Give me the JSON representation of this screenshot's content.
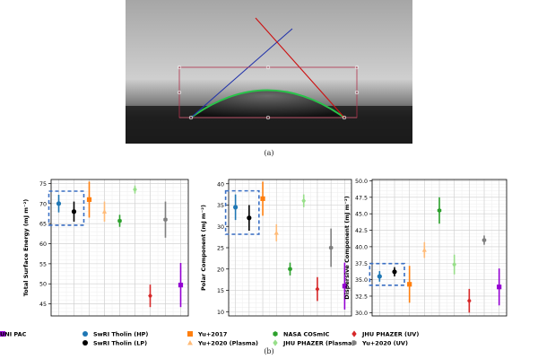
{
  "captions": {
    "a": "(a)",
    "b": "(b)"
  },
  "colors": {
    "SwRI Tholin (HP)": "#1f77b4",
    "SwRI Tholin (LP)": "#000000",
    "Yu+2017": "#ff7f0e",
    "Yu+2020 (Plasma)": "#ffbb78",
    "NASA COSmIC": "#2ca02c",
    "JHU PHAZER (Plasma)": "#98df8a",
    "JHU PHAZER (UV)": "#d62728",
    "Yu+2020 (UV)": "#7f7f7f",
    "UNI PAC": "#9400d3"
  },
  "legend": [
    {
      "label": "SwRI Tholin (HP)",
      "marker": "circle"
    },
    {
      "label": "SwRI Tholin (LP)",
      "marker": "circle"
    },
    {
      "label": "Yu+2017",
      "marker": "square"
    },
    {
      "label": "Yu+2020 (Plasma)",
      "marker": "triangle"
    },
    {
      "label": "NASA COSmIC",
      "marker": "hexagon"
    },
    {
      "label": "JHU PHAZER (Plasma)",
      "marker": "diamond"
    },
    {
      "label": "JHU PHAZER (UV)",
      "marker": "diamond"
    },
    {
      "label": "Yu+2020 (UV)",
      "marker": "hexagon"
    },
    {
      "label": "UNI PAC",
      "marker": "square"
    }
  ],
  "chart_data": [
    {
      "type": "scatter",
      "ylabel": "Total Surface Energy (mJ m⁻²)",
      "ylim": [
        42,
        76
      ],
      "yticks": [
        45,
        50,
        55,
        60,
        65,
        70,
        75
      ],
      "grid": true,
      "highlight_box": [
        "SwRI Tholin (HP)",
        "SwRI Tholin (LP)"
      ],
      "points": [
        {
          "series": "SwRI Tholin (HP)",
          "y": 70.0,
          "err": 2.2
        },
        {
          "series": "SwRI Tholin (LP)",
          "y": 68.0,
          "err": 2.5
        },
        {
          "series": "Yu+2017",
          "y": 71.0,
          "err": 4.5
        },
        {
          "series": "Yu+2020 (Plasma)",
          "y": 68.0,
          "err": 2.5
        },
        {
          "series": "NASA COSmIC",
          "y": 65.7,
          "err": 1.5
        },
        {
          "series": "JHU PHAZER (Plasma)",
          "y": 73.5,
          "err": 1.0
        },
        {
          "series": "JHU PHAZER (UV)",
          "y": 47.0,
          "err": 2.8
        },
        {
          "series": "Yu+2020 (UV)",
          "y": 66.0,
          "err": 4.5
        },
        {
          "series": "UNI PAC",
          "y": 49.7,
          "err": 5.5
        }
      ]
    },
    {
      "type": "scatter",
      "ylabel": "Polar Component (mJ m⁻²)",
      "ylim": [
        9,
        41
      ],
      "yticks": [
        10,
        15,
        20,
        25,
        30,
        35,
        40
      ],
      "grid": true,
      "highlight_box": [
        "SwRI Tholin (HP)",
        "SwRI Tholin (LP)"
      ],
      "points": [
        {
          "series": "SwRI Tholin (HP)",
          "y": 34.5,
          "err": 3.0
        },
        {
          "series": "SwRI Tholin (LP)",
          "y": 32.0,
          "err": 3.0
        },
        {
          "series": "Yu+2017",
          "y": 36.5,
          "err": 4.0
        },
        {
          "series": "Yu+2020 (Plasma)",
          "y": 28.5,
          "err": 2.0
        },
        {
          "series": "NASA COSmIC",
          "y": 20.0,
          "err": 1.5
        },
        {
          "series": "JHU PHAZER (Plasma)",
          "y": 36.0,
          "err": 1.5
        },
        {
          "series": "JHU PHAZER (UV)",
          "y": 15.3,
          "err": 2.8
        },
        {
          "series": "Yu+2020 (UV)",
          "y": 25.0,
          "err": 4.5
        },
        {
          "series": "UNI PAC",
          "y": 16.0,
          "err": 5.5
        }
      ]
    },
    {
      "type": "scatter",
      "ylabel": "Dispersive Component (mJ m⁻²)",
      "ylim": [
        29.5,
        50.2
      ],
      "yticks": [
        30.0,
        32.5,
        35.0,
        37.5,
        40.0,
        42.5,
        45.0,
        47.5,
        50.0
      ],
      "grid": true,
      "highlight_box": [
        "SwRI Tholin (HP)",
        "SwRI Tholin (LP)"
      ],
      "points": [
        {
          "series": "SwRI Tholin (HP)",
          "y": 35.5,
          "err": 0.8
        },
        {
          "series": "SwRI Tholin (LP)",
          "y": 36.2,
          "err": 0.7
        },
        {
          "series": "Yu+2017",
          "y": 34.3,
          "err": 2.8
        },
        {
          "series": "Yu+2020 (Plasma)",
          "y": 39.5,
          "err": 1.2
        },
        {
          "series": "NASA COSmIC",
          "y": 45.5,
          "err": 2.0
        },
        {
          "series": "JHU PHAZER (Plasma)",
          "y": 37.3,
          "err": 1.5
        },
        {
          "series": "JHU PHAZER (UV)",
          "y": 31.8,
          "err": 1.8
        },
        {
          "series": "Yu+2020 (UV)",
          "y": 41.0,
          "err": 0.7
        },
        {
          "series": "UNI PAC",
          "y": 33.9,
          "err": 2.8
        }
      ]
    }
  ]
}
